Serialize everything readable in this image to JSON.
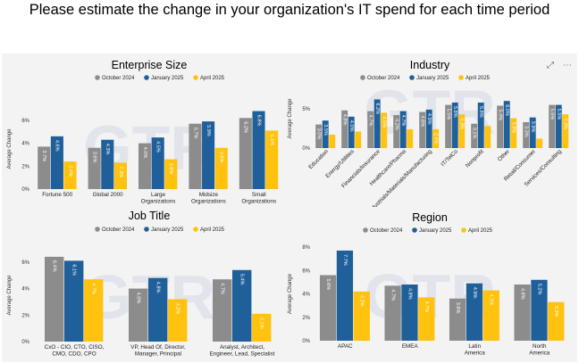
{
  "page_title": "Please estimate the change in your organization's IT spend for each time period",
  "colors": {
    "october_2024": "#8c8c8c",
    "january_2025": "#1f5f9a",
    "april_2025": "#ffc20e"
  },
  "chart_data": [
    {
      "type": "bar",
      "title": "Enterprise Size",
      "legend": [
        "October 2024",
        "January 2025",
        "April 2025"
      ],
      "categories": [
        "Fortune 500",
        "Global 2000",
        "Large Organizations",
        "Midsize Organizations",
        "Small Organizations"
      ],
      "series": [
        {
          "name": "October 2024",
          "values": [
            3.7,
            3.6,
            4.0,
            5.7,
            6.2
          ],
          "labels": [
            "3.7%",
            "3.6%",
            "4.0%",
            "5.7%",
            "6.2%"
          ]
        },
        {
          "name": "January 2025",
          "values": [
            4.6,
            4.3,
            4.5,
            5.9,
            6.8
          ],
          "labels": [
            "4.6%",
            "4.3%",
            "4.5%",
            "5.9%",
            "6.8%"
          ]
        },
        {
          "name": "April 2025",
          "values": [
            2.4,
            2.3,
            2.6,
            3.6,
            5.1
          ],
          "labels": [
            "2.4%",
            "2.3%",
            "2.6%",
            "3.6%",
            "5.1%"
          ]
        }
      ],
      "ylabel": "Average Change",
      "yticks": [
        "0%",
        "2%",
        "4%",
        "6%"
      ],
      "ylim": [
        0,
        7
      ]
    },
    {
      "type": "bar",
      "title": "Industry",
      "legend": [
        "October 2024",
        "January 2025",
        "April 2025"
      ],
      "categories": [
        "Education",
        "Energy/Utilities",
        "Financials/Insurance",
        "Healthcare/Pharma",
        "Industrials/Materials/Manufacturing",
        "IT/TelCo",
        "Nonprofit",
        "Other",
        "Retail/Consumer",
        "Services/Consulting"
      ],
      "series": [
        {
          "name": "October 2024",
          "values": [
            3.0,
            4.8,
            4.7,
            4.2,
            4.6,
            5.5,
            3.1,
            5.4,
            3.3,
            5.5
          ],
          "labels": [
            "3.0%",
            "4.8%",
            "4.7%",
            "4.2%",
            "4.6%",
            "5.5%",
            "3.1%",
            "5.4%",
            "3.3%",
            "5.5%"
          ]
        },
        {
          "name": "January 2025",
          "values": [
            3.5,
            4.0,
            6.2,
            4.7,
            4.9,
            5.8,
            5.8,
            6.0,
            3.9,
            5.5
          ],
          "labels": [
            "3.5%",
            "4.0%",
            "6.2%",
            "4.7%",
            "4.9%",
            "5.8%",
            "5.8%",
            "6.0%",
            "3.9%",
            "5.5%"
          ]
        },
        {
          "name": "April 2025",
          "values": [
            1.7,
            2.1,
            4.5,
            2.4,
            2.4,
            4.3,
            2.8,
            3.8,
            1.2,
            4.3
          ],
          "labels": [
            "",
            "",
            "4.5%",
            "",
            "2.4%",
            "4.3%",
            "",
            "3.8%",
            "",
            "4.3%"
          ]
        }
      ],
      "ylabel": "Average Change",
      "yticks": [
        "0%",
        "5%"
      ],
      "ylim": [
        0,
        7.5
      ]
    },
    {
      "type": "bar",
      "title": "Job Title",
      "legend": [
        "October 2024",
        "January 2025",
        "April 2025"
      ],
      "categories": [
        "CxO - CIO, CTO, CISO, CMO, CDO, CPO",
        "VP, Head Of, Director, Manager, Principal",
        "Analyst, Architect, Engineer, Lead, Specialist"
      ],
      "category_lines": [
        [
          "CxO - CIO, CTO, CISO,",
          "CMO, CDO, CPO"
        ],
        [
          "VP, Head Of, Director,",
          "Manager, Principal"
        ],
        [
          "Analyst, Architect,",
          "Engineer, Lead, Specialist"
        ]
      ],
      "series": [
        {
          "name": "October 2024",
          "values": [
            6.4,
            4.0,
            4.7
          ],
          "labels": [
            "6.4%",
            "4.0%",
            "4.7%"
          ]
        },
        {
          "name": "January 2025",
          "values": [
            6.1,
            4.8,
            5.4
          ],
          "labels": [
            "6.1%",
            "4.8%",
            "5.4%"
          ]
        },
        {
          "name": "April 2025",
          "values": [
            4.7,
            3.2,
            2.1
          ],
          "labels": [
            "4.7%",
            "3.2%",
            "2.1%"
          ]
        }
      ],
      "ylabel": "Average Change",
      "yticks": [
        "0%",
        "2%",
        "4%",
        "6%"
      ],
      "ylim": [
        0,
        7
      ]
    },
    {
      "type": "bar",
      "title": "Region",
      "legend": [
        "October 2024",
        "January 2025",
        "April 2025"
      ],
      "categories": [
        "APAC",
        "EMEA",
        "Latin America",
        "North America"
      ],
      "series": [
        {
          "name": "October 2024",
          "values": [
            5.6,
            4.7,
            3.6,
            4.8
          ],
          "labels": [
            "5.6%",
            "4.7%",
            "3.6%",
            "4.8%"
          ]
        },
        {
          "name": "January 2025",
          "values": [
            7.7,
            4.8,
            4.9,
            5.2
          ],
          "labels": [
            "7.7%",
            "4.8%",
            "4.9%",
            "5.2%"
          ]
        },
        {
          "name": "April 2025",
          "values": [
            4.2,
            3.7,
            4.3,
            3.3
          ],
          "labels": [
            "4.2%",
            "3.7%",
            "4.3%",
            "3.3%"
          ]
        }
      ],
      "ylabel": "Average Change",
      "yticks": [
        "0%",
        "2%",
        "4%",
        "6%",
        "8%"
      ],
      "ylim": [
        0,
        8
      ]
    }
  ]
}
